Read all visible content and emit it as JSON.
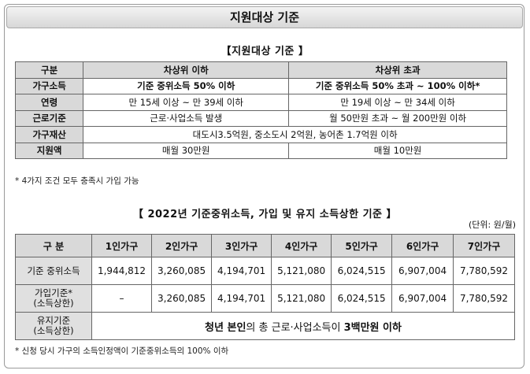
{
  "title": "지원대상 기준",
  "section1": {
    "heading": "【지원대상 기준 】",
    "columns": [
      "구분",
      "차상위 이하",
      "차상위 초과"
    ],
    "rows": [
      {
        "label": "가구소득",
        "a": "기준 중위소득 50% 이하",
        "b": "기준 중위소득 50% 초과 ~ 100% 이하*"
      },
      {
        "label": "연령",
        "a": "만 15세 이상 ~ 만 39세 이하",
        "b": "만 19세 이상 ~ 만 34세 이하"
      },
      {
        "label": "근로기준",
        "a": "근로·사업소득 발생",
        "b": "월 50만원 초과 ~ 월 200만원 이하"
      },
      {
        "label": "가구재산",
        "merged": "대도시3.5억원, 중소도시 2억원, 농어촌 1.7억원 이하"
      },
      {
        "label": "지원액",
        "a": "매월 30만원",
        "b": "매월 10만원"
      }
    ],
    "note": "* 4가지 조건 모두 충족시 가입 가능"
  },
  "section2": {
    "heading": "【 2022년 기준중위소득, 가입 및 유지 소득상한 기준 】",
    "unit": "(단위: 원/월)",
    "columns": [
      "구 분",
      "1인가구",
      "2인가구",
      "3인가구",
      "4인가구",
      "5인가구",
      "6인가구",
      "7인가구"
    ],
    "rows": [
      {
        "label": "기준 중위소득",
        "values": [
          "1,944,812",
          "3,260,085",
          "4,194,701",
          "5,121,080",
          "6,024,515",
          "6,907,004",
          "7,780,592"
        ]
      },
      {
        "label_line1": "가입기준*",
        "label_line2": "(소득상한)",
        "values": [
          "–",
          "3,260,085",
          "4,194,701",
          "5,121,080",
          "6,024,515",
          "6,907,004",
          "7,780,592"
        ]
      }
    ],
    "maintain": {
      "label_line1": "유지기준",
      "label_line2": "(소득상한)",
      "text_a": "청년 본인",
      "text_b": "의 총 근로·사업소득이 ",
      "text_c": "3백만원 이하"
    },
    "note": "* 신청 당시 가구의 소득인정액이 기준중위소득의 100% 이하"
  }
}
